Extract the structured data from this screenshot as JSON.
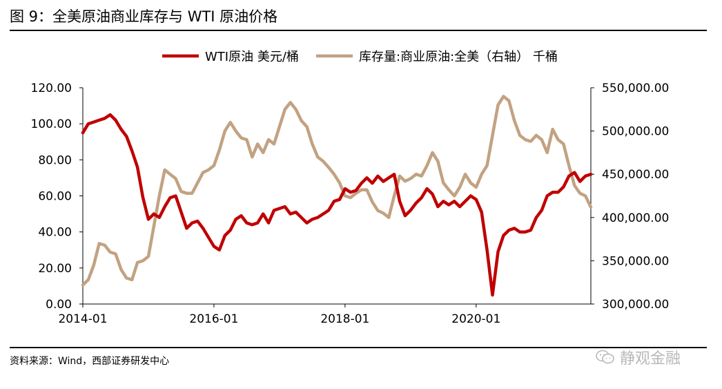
{
  "header": {
    "title": "图 9：全美原油商业库存与 WTI 原油价格"
  },
  "footer": {
    "source": "资料来源：Wind，西部证券研发中心"
  },
  "watermark": {
    "text": "静观金融",
    "icon": "wechat-icon"
  },
  "chart_data": {
    "type": "line",
    "x_ticks": [
      "2014-01",
      "2016-01",
      "2018-01",
      "2020-01"
    ],
    "xlim": [
      "2014-01",
      "2021-10"
    ],
    "y_left": {
      "ticks": [
        "0.00",
        "20.00",
        "40.00",
        "60.00",
        "80.00",
        "100.00",
        "120.00"
      ],
      "ylim": [
        0,
        120
      ]
    },
    "y_right": {
      "ticks": [
        "300,000.00",
        "350,000.00",
        "400,000.00",
        "450,000.00",
        "500,000.00",
        "550,000.00"
      ],
      "ylim": [
        300000,
        550000
      ]
    },
    "legend_position": "top",
    "grid": false,
    "series": [
      {
        "name": "WTI原油 美元/桶",
        "axis": "left",
        "color": "#c00000",
        "points": [
          [
            "2014-01",
            95
          ],
          [
            "2014-02",
            100
          ],
          [
            "2014-03",
            101
          ],
          [
            "2014-04",
            102
          ],
          [
            "2014-05",
            103
          ],
          [
            "2014-06",
            105
          ],
          [
            "2014-07",
            102
          ],
          [
            "2014-08",
            97
          ],
          [
            "2014-09",
            93
          ],
          [
            "2014-10",
            85
          ],
          [
            "2014-11",
            76
          ],
          [
            "2014-12",
            59
          ],
          [
            "2015-01",
            47
          ],
          [
            "2015-02",
            50
          ],
          [
            "2015-03",
            48
          ],
          [
            "2015-04",
            54
          ],
          [
            "2015-05",
            59
          ],
          [
            "2015-06",
            60
          ],
          [
            "2015-07",
            51
          ],
          [
            "2015-08",
            42
          ],
          [
            "2015-09",
            45
          ],
          [
            "2015-10",
            46
          ],
          [
            "2015-11",
            42
          ],
          [
            "2015-12",
            37
          ],
          [
            "2016-01",
            32
          ],
          [
            "2016-02",
            30
          ],
          [
            "2016-03",
            38
          ],
          [
            "2016-04",
            41
          ],
          [
            "2016-05",
            47
          ],
          [
            "2016-06",
            49
          ],
          [
            "2016-07",
            45
          ],
          [
            "2016-08",
            44
          ],
          [
            "2016-09",
            45
          ],
          [
            "2016-10",
            50
          ],
          [
            "2016-11",
            45
          ],
          [
            "2016-12",
            52
          ],
          [
            "2017-01",
            53
          ],
          [
            "2017-02",
            54
          ],
          [
            "2017-03",
            50
          ],
          [
            "2017-04",
            51
          ],
          [
            "2017-05",
            48
          ],
          [
            "2017-06",
            45
          ],
          [
            "2017-07",
            47
          ],
          [
            "2017-08",
            48
          ],
          [
            "2017-09",
            50
          ],
          [
            "2017-10",
            52
          ],
          [
            "2017-11",
            57
          ],
          [
            "2017-12",
            58
          ],
          [
            "2018-01",
            64
          ],
          [
            "2018-02",
            62
          ],
          [
            "2018-03",
            63
          ],
          [
            "2018-04",
            67
          ],
          [
            "2018-05",
            70
          ],
          [
            "2018-06",
            67
          ],
          [
            "2018-07",
            71
          ],
          [
            "2018-08",
            68
          ],
          [
            "2018-09",
            70
          ],
          [
            "2018-10",
            72
          ],
          [
            "2018-11",
            57
          ],
          [
            "2018-12",
            49
          ],
          [
            "2019-01",
            52
          ],
          [
            "2019-02",
            56
          ],
          [
            "2019-03",
            59
          ],
          [
            "2019-04",
            64
          ],
          [
            "2019-05",
            61
          ],
          [
            "2019-06",
            54
          ],
          [
            "2019-07",
            57
          ],
          [
            "2019-08",
            55
          ],
          [
            "2019-09",
            57
          ],
          [
            "2019-10",
            54
          ],
          [
            "2019-11",
            57
          ],
          [
            "2019-12",
            60
          ],
          [
            "2020-01",
            58
          ],
          [
            "2020-02",
            51
          ],
          [
            "2020-03",
            30
          ],
          [
            "2020-04",
            5
          ],
          [
            "2020-05",
            29
          ],
          [
            "2020-06",
            38
          ],
          [
            "2020-07",
            41
          ],
          [
            "2020-08",
            42
          ],
          [
            "2020-09",
            40
          ],
          [
            "2020-10",
            40
          ],
          [
            "2020-11",
            41
          ],
          [
            "2020-12",
            48
          ],
          [
            "2021-01",
            52
          ],
          [
            "2021-02",
            60
          ],
          [
            "2021-03",
            62
          ],
          [
            "2021-04",
            62
          ],
          [
            "2021-05",
            65
          ],
          [
            "2021-06",
            71
          ],
          [
            "2021-07",
            73
          ],
          [
            "2021-08",
            68
          ],
          [
            "2021-09",
            71
          ],
          [
            "2021-10",
            72
          ]
        ]
      },
      {
        "name": "库存量:商业原油:全美（右轴） 千桶",
        "axis": "right",
        "color": "#c2a282",
        "points": [
          [
            "2014-01",
            322000
          ],
          [
            "2014-02",
            328000
          ],
          [
            "2014-03",
            345000
          ],
          [
            "2014-04",
            370000
          ],
          [
            "2014-05",
            368000
          ],
          [
            "2014-06",
            360000
          ],
          [
            "2014-07",
            358000
          ],
          [
            "2014-08",
            340000
          ],
          [
            "2014-09",
            330000
          ],
          [
            "2014-10",
            328000
          ],
          [
            "2014-11",
            348000
          ],
          [
            "2014-12",
            350000
          ],
          [
            "2015-01",
            355000
          ],
          [
            "2015-02",
            390000
          ],
          [
            "2015-03",
            425000
          ],
          [
            "2015-04",
            455000
          ],
          [
            "2015-05",
            450000
          ],
          [
            "2015-06",
            445000
          ],
          [
            "2015-07",
            430000
          ],
          [
            "2015-08",
            428000
          ],
          [
            "2015-09",
            428000
          ],
          [
            "2015-10",
            440000
          ],
          [
            "2015-11",
            452000
          ],
          [
            "2015-12",
            455000
          ],
          [
            "2016-01",
            460000
          ],
          [
            "2016-02",
            478000
          ],
          [
            "2016-03",
            500000
          ],
          [
            "2016-04",
            510000
          ],
          [
            "2016-05",
            500000
          ],
          [
            "2016-06",
            492000
          ],
          [
            "2016-07",
            490000
          ],
          [
            "2016-08",
            470000
          ],
          [
            "2016-09",
            485000
          ],
          [
            "2016-10",
            475000
          ],
          [
            "2016-11",
            490000
          ],
          [
            "2016-12",
            485000
          ],
          [
            "2017-01",
            505000
          ],
          [
            "2017-02",
            525000
          ],
          [
            "2017-03",
            533000
          ],
          [
            "2017-04",
            525000
          ],
          [
            "2017-05",
            512000
          ],
          [
            "2017-06",
            505000
          ],
          [
            "2017-07",
            485000
          ],
          [
            "2017-08",
            470000
          ],
          [
            "2017-09",
            465000
          ],
          [
            "2017-10",
            458000
          ],
          [
            "2017-11",
            450000
          ],
          [
            "2017-12",
            440000
          ],
          [
            "2018-01",
            425000
          ],
          [
            "2018-02",
            423000
          ],
          [
            "2018-03",
            428000
          ],
          [
            "2018-04",
            432000
          ],
          [
            "2018-05",
            432000
          ],
          [
            "2018-06",
            418000
          ],
          [
            "2018-07",
            408000
          ],
          [
            "2018-08",
            405000
          ],
          [
            "2018-09",
            400000
          ],
          [
            "2018-10",
            425000
          ],
          [
            "2018-11",
            448000
          ],
          [
            "2018-12",
            442000
          ],
          [
            "2019-01",
            445000
          ],
          [
            "2019-02",
            450000
          ],
          [
            "2019-03",
            448000
          ],
          [
            "2019-04",
            460000
          ],
          [
            "2019-05",
            475000
          ],
          [
            "2019-06",
            465000
          ],
          [
            "2019-07",
            440000
          ],
          [
            "2019-08",
            432000
          ],
          [
            "2019-09",
            425000
          ],
          [
            "2019-10",
            435000
          ],
          [
            "2019-11",
            450000
          ],
          [
            "2019-12",
            440000
          ],
          [
            "2020-01",
            435000
          ],
          [
            "2020-02",
            450000
          ],
          [
            "2020-03",
            460000
          ],
          [
            "2020-04",
            495000
          ],
          [
            "2020-05",
            530000
          ],
          [
            "2020-06",
            540000
          ],
          [
            "2020-07",
            535000
          ],
          [
            "2020-08",
            512000
          ],
          [
            "2020-09",
            495000
          ],
          [
            "2020-10",
            490000
          ],
          [
            "2020-11",
            488000
          ],
          [
            "2020-12",
            495000
          ],
          [
            "2021-01",
            490000
          ],
          [
            "2021-02",
            475000
          ],
          [
            "2021-03",
            502000
          ],
          [
            "2021-04",
            490000
          ],
          [
            "2021-05",
            485000
          ],
          [
            "2021-06",
            460000
          ],
          [
            "2021-07",
            437000
          ],
          [
            "2021-08",
            428000
          ],
          [
            "2021-09",
            425000
          ],
          [
            "2021-10",
            412000
          ]
        ]
      }
    ]
  }
}
